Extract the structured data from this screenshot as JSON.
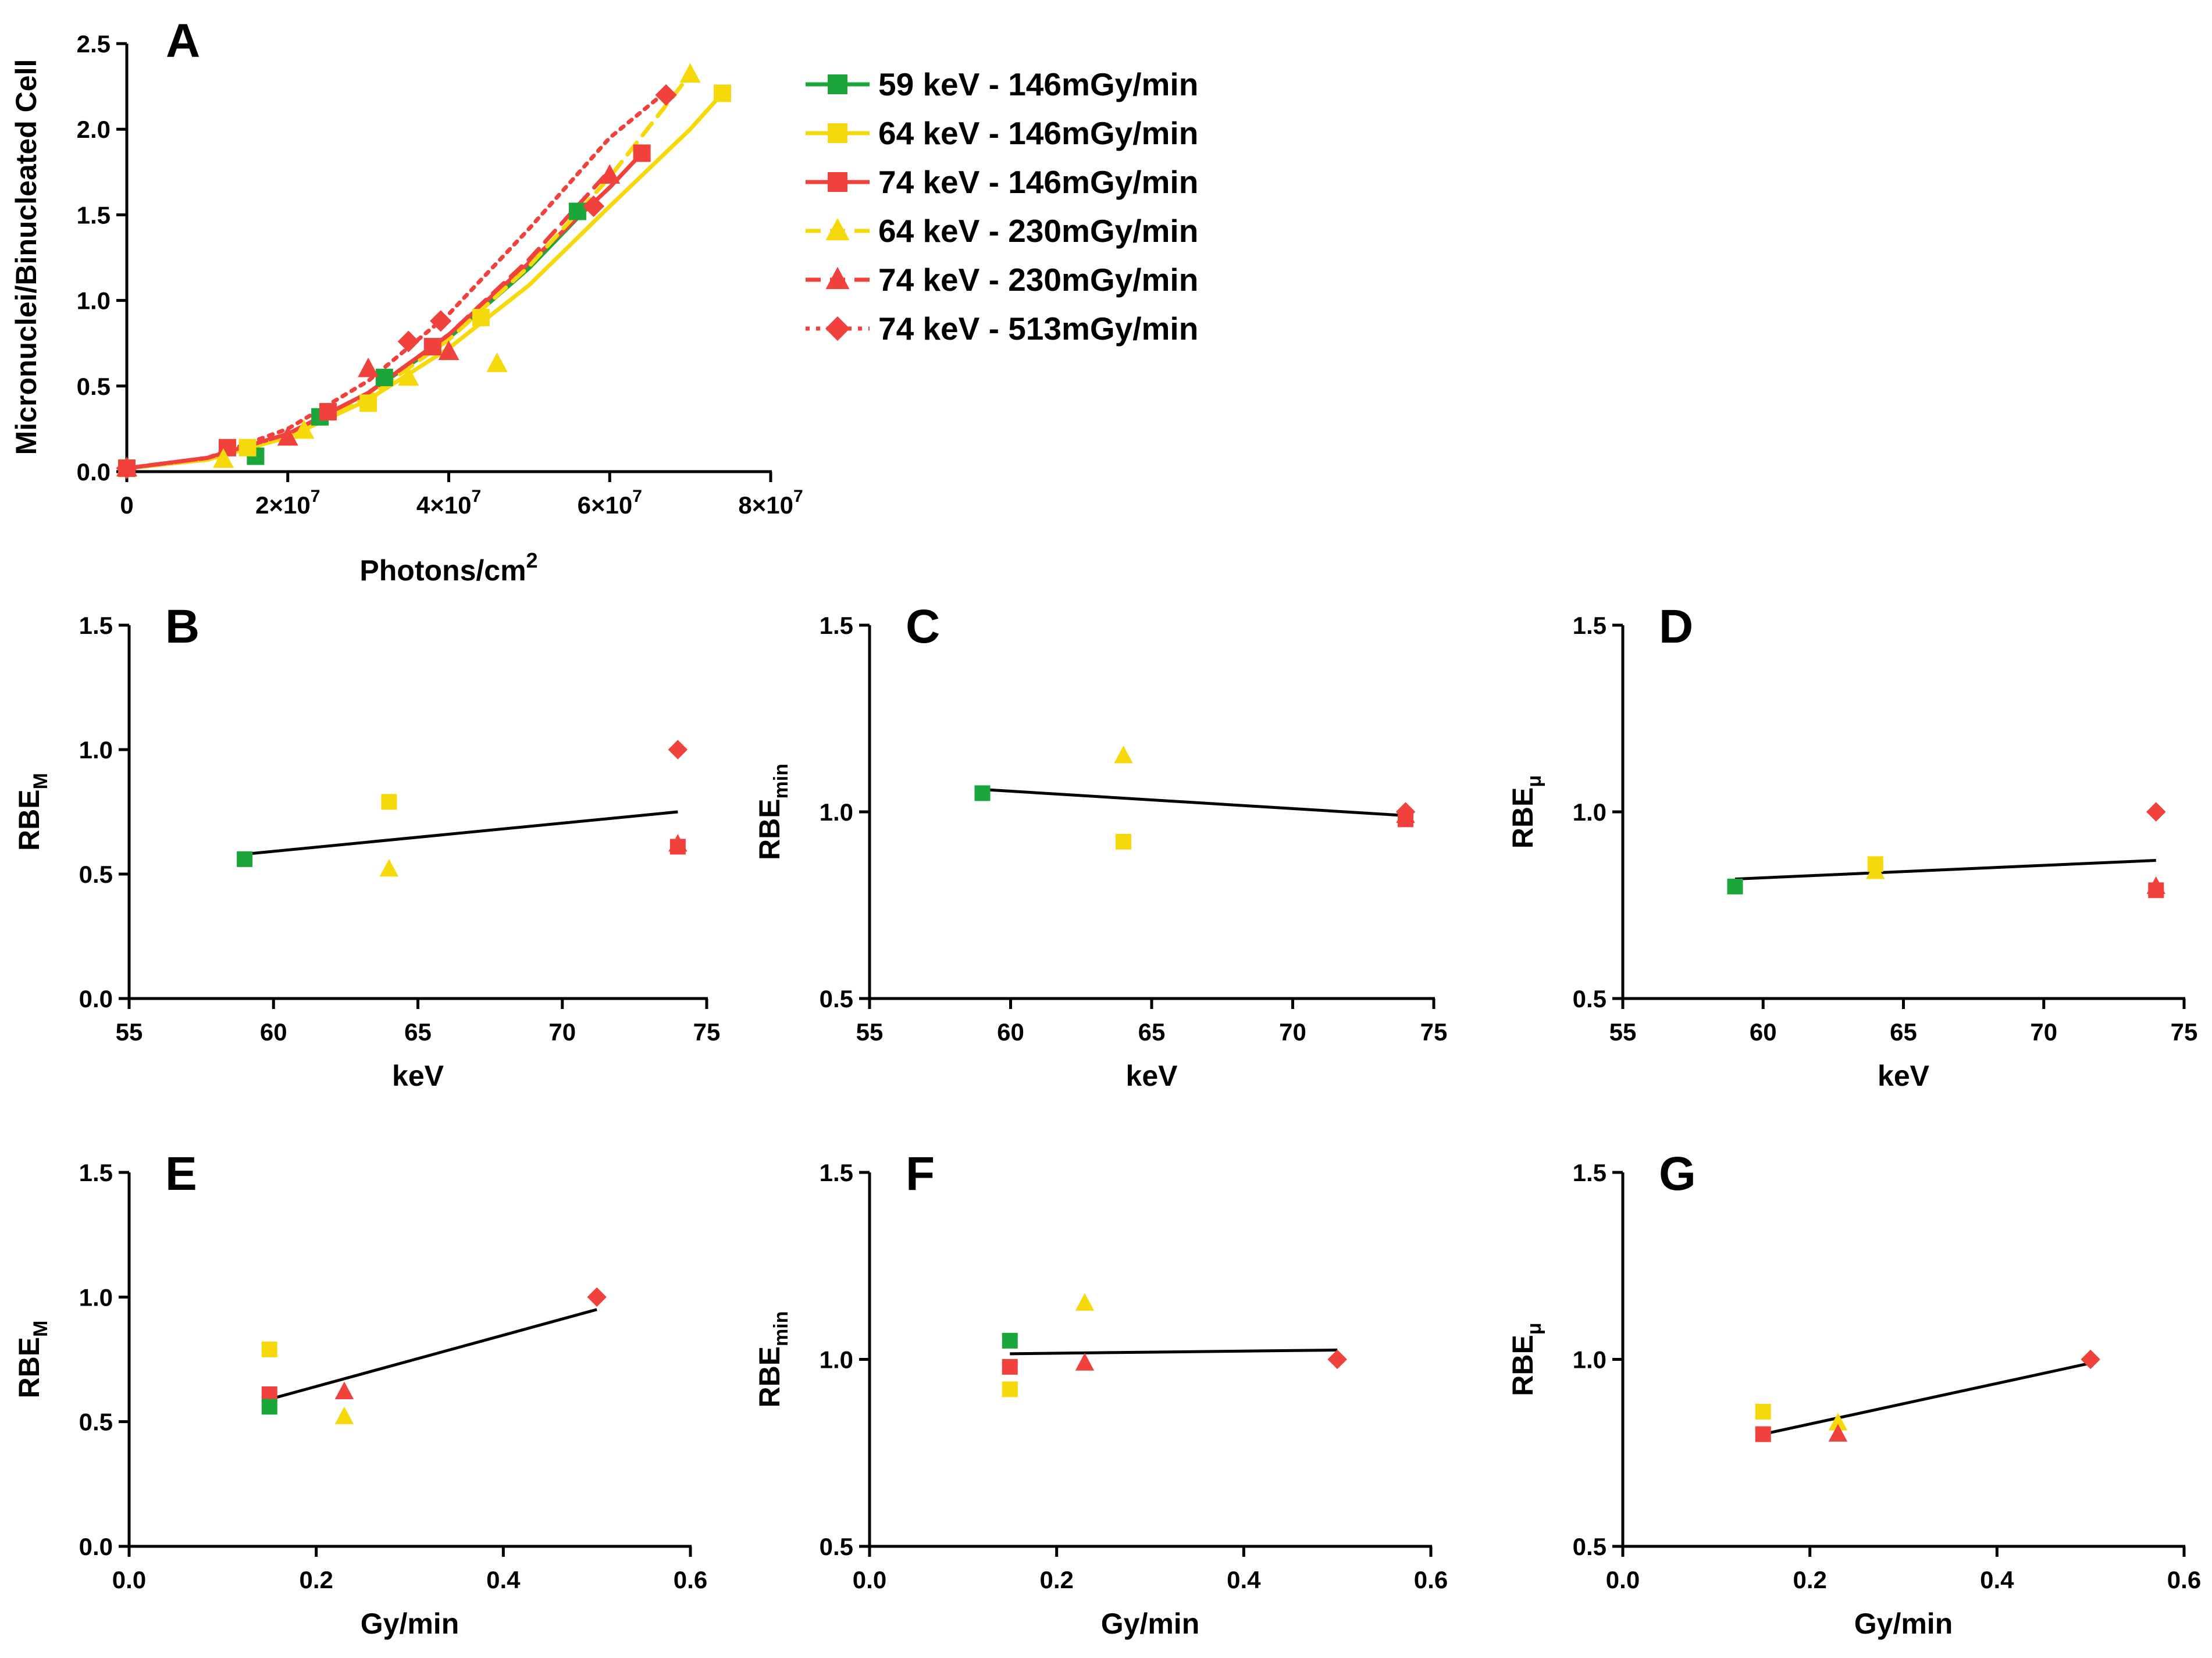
{
  "colors": {
    "green": "#1aa63a",
    "yellow": "#f5d90a",
    "red": "#f0413c",
    "axis": "#000000"
  },
  "legend": [
    {
      "label": "59 keV - 146mGy/min",
      "color": "#1aa63a",
      "marker": "square",
      "dash": "solid"
    },
    {
      "label": "64 keV - 146mGy/min",
      "color": "#f5d90a",
      "marker": "square",
      "dash": "solid"
    },
    {
      "label": "74 keV - 146mGy/min",
      "color": "#f0413c",
      "marker": "square",
      "dash": "solid"
    },
    {
      "label": "64 keV - 230mGy/min",
      "color": "#f5d90a",
      "marker": "triangle",
      "dash": "dashed"
    },
    {
      "label": "74 keV - 230mGy/min",
      "color": "#f0413c",
      "marker": "triangle",
      "dash": "dashed"
    },
    {
      "label": "74 keV - 513mGy/min",
      "color": "#f0413c",
      "marker": "diamond",
      "dash": "dotted"
    }
  ],
  "chart_data": [
    {
      "panel": "A",
      "type": "scatter",
      "xlabel": "Photons/cm",
      "xlabel_sup": "2",
      "ylabel": "Micronuclei/Binucleated Cell",
      "xlim": [
        0,
        80000000
      ],
      "ylim": [
        0,
        2.5
      ],
      "xticks": [
        {
          "v": 0,
          "mant": "0",
          "exp": ""
        },
        {
          "v": 20000000,
          "mant": "2×10",
          "exp": "7"
        },
        {
          "v": 40000000,
          "mant": "4×10",
          "exp": "7"
        },
        {
          "v": 60000000,
          "mant": "6×10",
          "exp": "7"
        },
        {
          "v": 80000000,
          "mant": "8×10",
          "exp": "7"
        }
      ],
      "yticks": [
        {
          "v": 0,
          "label": "0.0"
        },
        {
          "v": 0.5,
          "label": "0.5"
        },
        {
          "v": 1.0,
          "label": "1.0"
        },
        {
          "v": 1.5,
          "label": "1.5"
        },
        {
          "v": 2.0,
          "label": "2.0"
        },
        {
          "v": 2.5,
          "label": "2.5"
        }
      ],
      "series": [
        {
          "name": "59 keV - 146mGy/min",
          "color": "#1aa63a",
          "marker": "square",
          "dash": "solid",
          "points": [
            [
              0,
              0.02
            ],
            [
              16000000,
              0.09
            ],
            [
              24000000,
              0.32
            ],
            [
              32000000,
              0.55
            ],
            [
              56000000,
              1.52
            ]
          ],
          "fit": [
            [
              0,
              0.02
            ],
            [
              10000000,
              0.07
            ],
            [
              20000000,
              0.22
            ],
            [
              30000000,
              0.46
            ],
            [
              40000000,
              0.78
            ],
            [
              50000000,
              1.19
            ],
            [
              57000000,
              1.53
            ]
          ]
        },
        {
          "name": "64 keV - 146mGy/min",
          "color": "#f5d90a",
          "marker": "square",
          "dash": "solid",
          "points": [
            [
              0,
              0.02
            ],
            [
              15000000,
              0.14
            ],
            [
              30000000,
              0.4
            ],
            [
              44000000,
              0.9
            ],
            [
              74000000,
              2.21
            ]
          ],
          "fit": [
            [
              0,
              0.02
            ],
            [
              10000000,
              0.07
            ],
            [
              20000000,
              0.2
            ],
            [
              30000000,
              0.42
            ],
            [
              40000000,
              0.72
            ],
            [
              50000000,
              1.09
            ],
            [
              60000000,
              1.55
            ],
            [
              70000000,
              2.0
            ],
            [
              74000000,
              2.21
            ]
          ]
        },
        {
          "name": "74 keV - 146mGy/min",
          "color": "#f0413c",
          "marker": "square",
          "dash": "solid",
          "points": [
            [
              0,
              0.02
            ],
            [
              12500000,
              0.14
            ],
            [
              25000000,
              0.35
            ],
            [
              38000000,
              0.73
            ],
            [
              64000000,
              1.86
            ]
          ],
          "fit": [
            [
              0,
              0.02
            ],
            [
              10000000,
              0.08
            ],
            [
              20000000,
              0.22
            ],
            [
              30000000,
              0.46
            ],
            [
              40000000,
              0.8
            ],
            [
              50000000,
              1.22
            ],
            [
              60000000,
              1.66
            ],
            [
              64000000,
              1.86
            ]
          ]
        },
        {
          "name": "64 keV - 230mGy/min",
          "color": "#f5d90a",
          "marker": "triangle",
          "dash": "dashed",
          "points": [
            [
              0,
              0.02
            ],
            [
              12000000,
              0.07
            ],
            [
              22000000,
              0.24
            ],
            [
              35000000,
              0.55
            ],
            [
              46000000,
              0.63
            ],
            [
              70000000,
              2.32
            ]
          ],
          "fit": [
            [
              0,
              0.02
            ],
            [
              10000000,
              0.07
            ],
            [
              20000000,
              0.21
            ],
            [
              30000000,
              0.44
            ],
            [
              40000000,
              0.77
            ],
            [
              50000000,
              1.2
            ],
            [
              60000000,
              1.72
            ],
            [
              70000000,
              2.32
            ]
          ]
        },
        {
          "name": "74 keV - 230mGy/min",
          "color": "#f0413c",
          "marker": "triangle",
          "dash": "dashed",
          "points": [
            [
              0,
              0.02
            ],
            [
              20000000,
              0.2
            ],
            [
              30000000,
              0.6
            ],
            [
              40000000,
              0.7
            ],
            [
              60000000,
              1.73
            ]
          ],
          "fit": [
            [
              0,
              0.02
            ],
            [
              10000000,
              0.08
            ],
            [
              20000000,
              0.22
            ],
            [
              30000000,
              0.46
            ],
            [
              40000000,
              0.8
            ],
            [
              50000000,
              1.24
            ],
            [
              60000000,
              1.76
            ]
          ]
        },
        {
          "name": "74 keV - 513mGy/min",
          "color": "#f0413c",
          "marker": "diamond",
          "dash": "dotted",
          "points": [
            [
              0,
              0.02
            ],
            [
              35000000,
              0.76
            ],
            [
              39000000,
              0.88
            ],
            [
              58000000,
              1.55
            ],
            [
              67000000,
              2.2
            ]
          ],
          "fit": [
            [
              0,
              0.02
            ],
            [
              10000000,
              0.08
            ],
            [
              20000000,
              0.25
            ],
            [
              30000000,
              0.53
            ],
            [
              40000000,
              0.92
            ],
            [
              50000000,
              1.42
            ],
            [
              60000000,
              1.95
            ],
            [
              67000000,
              2.22
            ]
          ]
        }
      ]
    },
    {
      "panel": "B",
      "type": "scatter",
      "xlabel": "keV",
      "ylabel": "RBE",
      "ylabel_sub": "M",
      "xlim": [
        55,
        75
      ],
      "ylim": [
        0,
        1.5
      ],
      "xticks": [
        {
          "v": 55,
          "label": "55"
        },
        {
          "v": 60,
          "label": "60"
        },
        {
          "v": 65,
          "label": "65"
        },
        {
          "v": 70,
          "label": "70"
        },
        {
          "v": 75,
          "label": "75"
        }
      ],
      "yticks": [
        {
          "v": 0,
          "label": "0.0"
        },
        {
          "v": 0.5,
          "label": "0.5"
        },
        {
          "v": 1.0,
          "label": "1.0"
        },
        {
          "v": 1.5,
          "label": "1.5"
        }
      ],
      "points": [
        {
          "x": 59,
          "y": 0.56,
          "color": "#1aa63a",
          "marker": "square"
        },
        {
          "x": 64,
          "y": 0.79,
          "color": "#f5d90a",
          "marker": "square"
        },
        {
          "x": 64,
          "y": 0.52,
          "color": "#f5d90a",
          "marker": "triangle"
        },
        {
          "x": 74,
          "y": 1.0,
          "color": "#f0413c",
          "marker": "diamond"
        },
        {
          "x": 74,
          "y": 0.62,
          "color": "#f0413c",
          "marker": "triangle"
        },
        {
          "x": 74,
          "y": 0.61,
          "color": "#f0413c",
          "marker": "square"
        }
      ],
      "fit": [
        [
          59,
          0.58
        ],
        [
          74,
          0.75
        ]
      ]
    },
    {
      "panel": "C",
      "type": "scatter",
      "xlabel": "keV",
      "ylabel": "RBE",
      "ylabel_sub": "min",
      "xlim": [
        55,
        75
      ],
      "ylim": [
        0.5,
        1.5
      ],
      "xticks": [
        {
          "v": 55,
          "label": "55"
        },
        {
          "v": 60,
          "label": "60"
        },
        {
          "v": 65,
          "label": "65"
        },
        {
          "v": 70,
          "label": "70"
        },
        {
          "v": 75,
          "label": "75"
        }
      ],
      "yticks": [
        {
          "v": 0.5,
          "label": "0.5"
        },
        {
          "v": 1.0,
          "label": "1.0"
        },
        {
          "v": 1.5,
          "label": "1.5"
        }
      ],
      "points": [
        {
          "x": 59,
          "y": 1.05,
          "color": "#1aa63a",
          "marker": "square"
        },
        {
          "x": 64,
          "y": 1.15,
          "color": "#f5d90a",
          "marker": "triangle"
        },
        {
          "x": 64,
          "y": 0.92,
          "color": "#f5d90a",
          "marker": "square"
        },
        {
          "x": 74,
          "y": 1.0,
          "color": "#f0413c",
          "marker": "diamond"
        },
        {
          "x": 74,
          "y": 0.99,
          "color": "#f0413c",
          "marker": "triangle"
        },
        {
          "x": 74,
          "y": 0.98,
          "color": "#f0413c",
          "marker": "square"
        }
      ],
      "fit": [
        [
          59,
          1.06
        ],
        [
          74,
          0.99
        ]
      ]
    },
    {
      "panel": "D",
      "type": "scatter",
      "xlabel": "keV",
      "ylabel": "RBE",
      "ylabel_sub": "μ",
      "xlim": [
        55,
        75
      ],
      "ylim": [
        0.5,
        1.5
      ],
      "xticks": [
        {
          "v": 55,
          "label": "55"
        },
        {
          "v": 60,
          "label": "60"
        },
        {
          "v": 65,
          "label": "65"
        },
        {
          "v": 70,
          "label": "70"
        },
        {
          "v": 75,
          "label": "75"
        }
      ],
      "yticks": [
        {
          "v": 0.5,
          "label": "0.5"
        },
        {
          "v": 1.0,
          "label": "1.0"
        },
        {
          "v": 1.5,
          "label": "1.5"
        }
      ],
      "points": [
        {
          "x": 59,
          "y": 0.8,
          "color": "#1aa63a",
          "marker": "square"
        },
        {
          "x": 64,
          "y": 0.86,
          "color": "#f5d90a",
          "marker": "square"
        },
        {
          "x": 64,
          "y": 0.84,
          "color": "#f5d90a",
          "marker": "triangle"
        },
        {
          "x": 74,
          "y": 1.0,
          "color": "#f0413c",
          "marker": "diamond"
        },
        {
          "x": 74,
          "y": 0.8,
          "color": "#f0413c",
          "marker": "triangle"
        },
        {
          "x": 74,
          "y": 0.79,
          "color": "#f0413c",
          "marker": "square"
        }
      ],
      "fit": [
        [
          59,
          0.82
        ],
        [
          74,
          0.87
        ]
      ]
    },
    {
      "panel": "E",
      "type": "scatter",
      "xlabel": "Gy/min",
      "ylabel": "RBE",
      "ylabel_sub": "M",
      "xlim": [
        0,
        0.6
      ],
      "ylim": [
        0,
        1.5
      ],
      "xticks": [
        {
          "v": 0,
          "label": "0.0"
        },
        {
          "v": 0.2,
          "label": "0.2"
        },
        {
          "v": 0.4,
          "label": "0.4"
        },
        {
          "v": 0.6,
          "label": "0.6"
        }
      ],
      "yticks": [
        {
          "v": 0,
          "label": "0.0"
        },
        {
          "v": 0.5,
          "label": "0.5"
        },
        {
          "v": 1.0,
          "label": "1.0"
        },
        {
          "v": 1.5,
          "label": "1.5"
        }
      ],
      "points": [
        {
          "x": 0.15,
          "y": 0.79,
          "color": "#f5d90a",
          "marker": "square"
        },
        {
          "x": 0.15,
          "y": 0.61,
          "color": "#f0413c",
          "marker": "square"
        },
        {
          "x": 0.15,
          "y": 0.56,
          "color": "#1aa63a",
          "marker": "square"
        },
        {
          "x": 0.23,
          "y": 0.62,
          "color": "#f0413c",
          "marker": "triangle"
        },
        {
          "x": 0.23,
          "y": 0.52,
          "color": "#f5d90a",
          "marker": "triangle"
        },
        {
          "x": 0.5,
          "y": 1.0,
          "color": "#f0413c",
          "marker": "diamond"
        }
      ],
      "fit": [
        [
          0.15,
          0.59
        ],
        [
          0.5,
          0.95
        ]
      ]
    },
    {
      "panel": "F",
      "type": "scatter",
      "xlabel": "Gy/min",
      "ylabel": "RBE",
      "ylabel_sub": "min",
      "xlim": [
        0,
        0.6
      ],
      "ylim": [
        0.5,
        1.5
      ],
      "xticks": [
        {
          "v": 0,
          "label": "0.0"
        },
        {
          "v": 0.2,
          "label": "0.2"
        },
        {
          "v": 0.4,
          "label": "0.4"
        },
        {
          "v": 0.6,
          "label": "0.6"
        }
      ],
      "yticks": [
        {
          "v": 0.5,
          "label": "0.5"
        },
        {
          "v": 1.0,
          "label": "1.0"
        },
        {
          "v": 1.5,
          "label": "1.5"
        }
      ],
      "points": [
        {
          "x": 0.15,
          "y": 1.05,
          "color": "#1aa63a",
          "marker": "square"
        },
        {
          "x": 0.15,
          "y": 0.98,
          "color": "#f0413c",
          "marker": "square"
        },
        {
          "x": 0.15,
          "y": 0.92,
          "color": "#f5d90a",
          "marker": "square"
        },
        {
          "x": 0.23,
          "y": 1.15,
          "color": "#f5d90a",
          "marker": "triangle"
        },
        {
          "x": 0.23,
          "y": 0.99,
          "color": "#f0413c",
          "marker": "triangle"
        },
        {
          "x": 0.5,
          "y": 1.0,
          "color": "#f0413c",
          "marker": "diamond"
        }
      ],
      "fit": [
        [
          0.15,
          1.015
        ],
        [
          0.5,
          1.025
        ]
      ]
    },
    {
      "panel": "G",
      "type": "scatter",
      "xlabel": "Gy/min",
      "ylabel": "RBE",
      "ylabel_sub": "μ",
      "xlim": [
        0,
        0.6
      ],
      "ylim": [
        0.5,
        1.5
      ],
      "xticks": [
        {
          "v": 0,
          "label": "0.0"
        },
        {
          "v": 0.2,
          "label": "0.2"
        },
        {
          "v": 0.4,
          "label": "0.4"
        },
        {
          "v": 0.6,
          "label": "0.6"
        }
      ],
      "yticks": [
        {
          "v": 0.5,
          "label": "0.5"
        },
        {
          "v": 1.0,
          "label": "1.0"
        },
        {
          "v": 1.5,
          "label": "1.5"
        }
      ],
      "points": [
        {
          "x": 0.15,
          "y": 0.86,
          "color": "#f5d90a",
          "marker": "square"
        },
        {
          "x": 0.15,
          "y": 0.8,
          "color": "#f0413c",
          "marker": "square"
        },
        {
          "x": 0.23,
          "y": 0.83,
          "color": "#f5d90a",
          "marker": "triangle"
        },
        {
          "x": 0.23,
          "y": 0.8,
          "color": "#f0413c",
          "marker": "triangle"
        },
        {
          "x": 0.5,
          "y": 1.0,
          "color": "#f0413c",
          "marker": "diamond"
        }
      ],
      "fit": [
        [
          0.15,
          0.8
        ],
        [
          0.5,
          0.99
        ]
      ]
    }
  ]
}
